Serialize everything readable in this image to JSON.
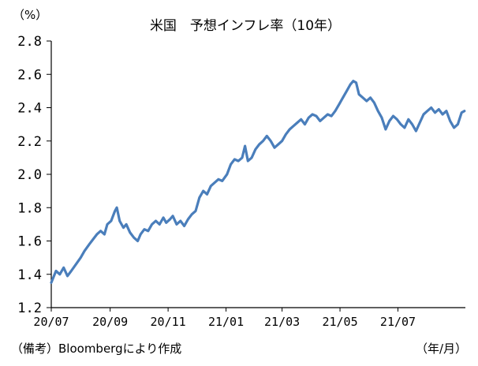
{
  "chart_data": {
    "type": "line",
    "title": "米国　予想インフレ率（10年）",
    "unit_label": "（%）",
    "x_unit_label": "（年/月）",
    "source_note": "（備考）Bloombergにより作成",
    "ylim": [
      1.2,
      2.8
    ],
    "y_ticks": [
      "1.2",
      "1.4",
      "1.6",
      "1.8",
      "2.0",
      "2.2",
      "2.4",
      "2.6",
      "2.8"
    ],
    "x_range": [
      "2020-07-01",
      "2021-09-10"
    ],
    "x_ticks": [
      {
        "label": "20/07",
        "date": "2020-07-01"
      },
      {
        "label": "20/09",
        "date": "2020-09-01"
      },
      {
        "label": "20/11",
        "date": "2020-11-01"
      },
      {
        "label": "21/01",
        "date": "2021-01-01"
      },
      {
        "label": "21/03",
        "date": "2021-03-01"
      },
      {
        "label": "21/05",
        "date": "2021-05-01"
      },
      {
        "label": "21/07",
        "date": "2021-07-01"
      }
    ],
    "grid": false,
    "line_color": "#4a7ebb",
    "series": [
      {
        "points": [
          [
            "2020-07-01",
            1.35
          ],
          [
            "2020-07-06",
            1.42
          ],
          [
            "2020-07-10",
            1.4
          ],
          [
            "2020-07-14",
            1.44
          ],
          [
            "2020-07-18",
            1.39
          ],
          [
            "2020-07-22",
            1.42
          ],
          [
            "2020-07-27",
            1.46
          ],
          [
            "2020-08-01",
            1.5
          ],
          [
            "2020-08-05",
            1.54
          ],
          [
            "2020-08-10",
            1.58
          ],
          [
            "2020-08-14",
            1.61
          ],
          [
            "2020-08-18",
            1.64
          ],
          [
            "2020-08-22",
            1.66
          ],
          [
            "2020-08-26",
            1.64
          ],
          [
            "2020-08-29",
            1.7
          ],
          [
            "2020-09-02",
            1.72
          ],
          [
            "2020-09-06",
            1.78
          ],
          [
            "2020-09-08",
            1.8
          ],
          [
            "2020-09-11",
            1.72
          ],
          [
            "2020-09-15",
            1.68
          ],
          [
            "2020-09-18",
            1.7
          ],
          [
            "2020-09-22",
            1.65
          ],
          [
            "2020-09-26",
            1.62
          ],
          [
            "2020-09-30",
            1.6
          ],
          [
            "2020-10-03",
            1.64
          ],
          [
            "2020-10-07",
            1.67
          ],
          [
            "2020-10-11",
            1.66
          ],
          [
            "2020-10-15",
            1.7
          ],
          [
            "2020-10-19",
            1.72
          ],
          [
            "2020-10-23",
            1.7
          ],
          [
            "2020-10-27",
            1.74
          ],
          [
            "2020-10-30",
            1.71
          ],
          [
            "2020-11-03",
            1.73
          ],
          [
            "2020-11-06",
            1.75
          ],
          [
            "2020-11-10",
            1.7
          ],
          [
            "2020-11-14",
            1.72
          ],
          [
            "2020-11-18",
            1.69
          ],
          [
            "2020-11-22",
            1.73
          ],
          [
            "2020-11-26",
            1.76
          ],
          [
            "2020-11-30",
            1.78
          ],
          [
            "2020-12-04",
            1.86
          ],
          [
            "2020-12-08",
            1.9
          ],
          [
            "2020-12-12",
            1.88
          ],
          [
            "2020-12-16",
            1.93
          ],
          [
            "2020-12-20",
            1.95
          ],
          [
            "2020-12-24",
            1.97
          ],
          [
            "2020-12-28",
            1.96
          ],
          [
            "2021-01-02",
            2.0
          ],
          [
            "2021-01-06",
            2.06
          ],
          [
            "2021-01-10",
            2.09
          ],
          [
            "2021-01-14",
            2.08
          ],
          [
            "2021-01-18",
            2.1
          ],
          [
            "2021-01-21",
            2.17
          ],
          [
            "2021-01-24",
            2.08
          ],
          [
            "2021-01-28",
            2.1
          ],
          [
            "2021-02-01",
            2.15
          ],
          [
            "2021-02-05",
            2.18
          ],
          [
            "2021-02-09",
            2.2
          ],
          [
            "2021-02-13",
            2.23
          ],
          [
            "2021-02-17",
            2.2
          ],
          [
            "2021-02-21",
            2.16
          ],
          [
            "2021-02-25",
            2.18
          ],
          [
            "2021-03-01",
            2.2
          ],
          [
            "2021-03-05",
            2.24
          ],
          [
            "2021-03-09",
            2.27
          ],
          [
            "2021-03-13",
            2.29
          ],
          [
            "2021-03-17",
            2.31
          ],
          [
            "2021-03-21",
            2.33
          ],
          [
            "2021-03-25",
            2.3
          ],
          [
            "2021-03-29",
            2.34
          ],
          [
            "2021-04-02",
            2.36
          ],
          [
            "2021-04-06",
            2.35
          ],
          [
            "2021-04-10",
            2.32
          ],
          [
            "2021-04-14",
            2.34
          ],
          [
            "2021-04-18",
            2.36
          ],
          [
            "2021-04-22",
            2.35
          ],
          [
            "2021-04-26",
            2.38
          ],
          [
            "2021-04-30",
            2.42
          ],
          [
            "2021-05-04",
            2.46
          ],
          [
            "2021-05-08",
            2.5
          ],
          [
            "2021-05-12",
            2.54
          ],
          [
            "2021-05-15",
            2.56
          ],
          [
            "2021-05-18",
            2.55
          ],
          [
            "2021-05-21",
            2.48
          ],
          [
            "2021-05-25",
            2.46
          ],
          [
            "2021-05-29",
            2.44
          ],
          [
            "2021-06-02",
            2.46
          ],
          [
            "2021-06-06",
            2.43
          ],
          [
            "2021-06-10",
            2.38
          ],
          [
            "2021-06-14",
            2.34
          ],
          [
            "2021-06-18",
            2.27
          ],
          [
            "2021-06-22",
            2.32
          ],
          [
            "2021-06-26",
            2.35
          ],
          [
            "2021-06-30",
            2.33
          ],
          [
            "2021-07-04",
            2.3
          ],
          [
            "2021-07-08",
            2.28
          ],
          [
            "2021-07-12",
            2.33
          ],
          [
            "2021-07-16",
            2.3
          ],
          [
            "2021-07-20",
            2.26
          ],
          [
            "2021-07-24",
            2.31
          ],
          [
            "2021-07-28",
            2.36
          ],
          [
            "2021-08-01",
            2.38
          ],
          [
            "2021-08-05",
            2.4
          ],
          [
            "2021-08-09",
            2.37
          ],
          [
            "2021-08-13",
            2.39
          ],
          [
            "2021-08-17",
            2.36
          ],
          [
            "2021-08-21",
            2.38
          ],
          [
            "2021-08-25",
            2.32
          ],
          [
            "2021-08-29",
            2.28
          ],
          [
            "2021-09-02",
            2.3
          ],
          [
            "2021-09-06",
            2.37
          ],
          [
            "2021-09-09",
            2.38
          ]
        ]
      }
    ]
  }
}
